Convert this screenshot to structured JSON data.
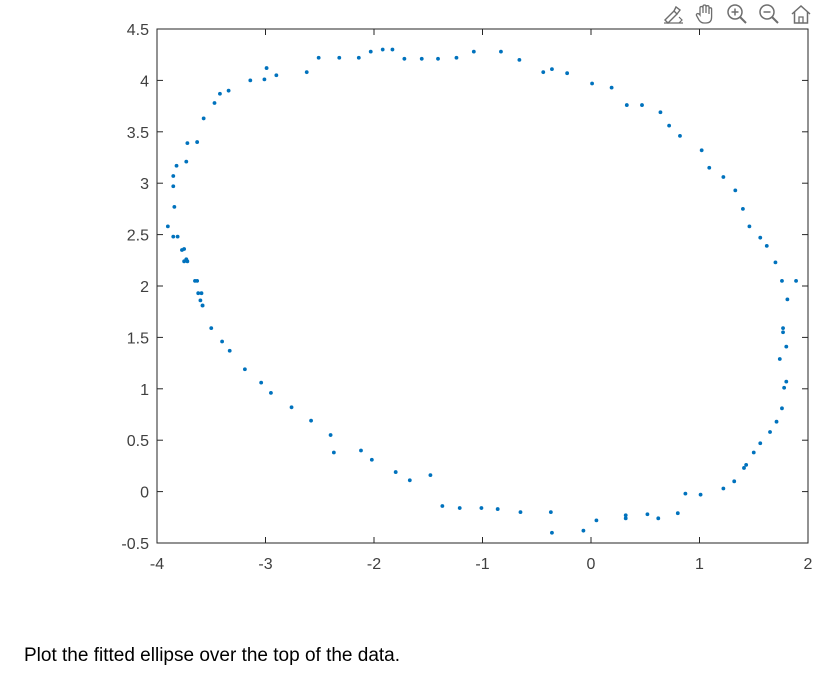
{
  "toolbar": {
    "buttons": [
      {
        "name": "brush-icon"
      },
      {
        "name": "pan-icon"
      },
      {
        "name": "zoom-in-icon"
      },
      {
        "name": "zoom-out-icon"
      },
      {
        "name": "home-icon"
      }
    ]
  },
  "caption": "Plot the fitted ellipse over the top of the data.",
  "colors": {
    "marker": "#0072BD",
    "axis": "#262626",
    "tick_text": "#404040",
    "toolbar_icon": "#6e6e6e"
  },
  "chart_data": {
    "type": "scatter",
    "title": "",
    "xlabel": "",
    "ylabel": "",
    "xlim": [
      -4,
      2
    ],
    "ylim": [
      -0.5,
      4.5
    ],
    "xticks": [
      -4,
      -3,
      -2,
      -1,
      0,
      1,
      2
    ],
    "xtick_labels": [
      "-4",
      "-3",
      "-2",
      "-1",
      "0",
      "1",
      "2"
    ],
    "yticks": [
      -0.5,
      0,
      0.5,
      1,
      1.5,
      2,
      2.5,
      3,
      3.5,
      4,
      4.5
    ],
    "ytick_labels": [
      "-0.5",
      "0",
      "0.5",
      "1",
      "1.5",
      "2",
      "2.5",
      "3",
      "3.5",
      "4",
      "4.5"
    ],
    "grid": false,
    "box": true,
    "series": [
      {
        "color": "#0072BD",
        "x": [
          -3.85,
          -3.77,
          -3.75,
          -3.72,
          -3.65,
          -3.62,
          -3.6,
          -3.58,
          -3.5,
          -3.4,
          -3.33,
          -3.19,
          -3.04,
          -2.95,
          -2.76,
          -2.58,
          -2.4,
          -2.37,
          -2.12,
          -2.02,
          -1.8,
          -1.67,
          -1.48,
          -1.37,
          -1.21,
          -1.01,
          -0.86,
          -0.65,
          -0.37,
          -0.36,
          -0.07,
          0.05,
          0.32,
          0.32,
          0.52,
          0.62,
          0.8,
          0.87,
          1.01,
          1.22,
          1.32,
          1.41,
          1.43,
          1.5,
          1.56,
          1.65,
          1.71,
          1.76,
          1.78,
          1.8,
          1.8,
          1.77,
          1.77,
          1.74,
          1.81,
          1.89,
          1.76,
          1.7,
          1.62,
          1.56,
          1.46,
          1.4,
          1.33,
          1.22,
          1.09,
          1.02,
          0.82,
          0.72,
          0.64,
          0.47,
          0.33,
          0.19,
          0.01,
          -0.22,
          -0.36,
          -0.44,
          -0.66,
          -0.83,
          -1.08,
          -1.24,
          -1.41,
          -1.56,
          -1.72,
          -1.83,
          -1.92,
          -2.03,
          -2.14,
          -2.32,
          -2.51,
          -2.62,
          -2.9,
          -2.99,
          -3.01,
          -3.14,
          -3.34,
          -3.42,
          -3.47,
          -3.57,
          -3.63,
          -3.72,
          -3.73,
          -3.82,
          -3.85,
          -3.85,
          -3.84,
          -3.9,
          -3.81,
          -3.75,
          -3.73,
          -3.63,
          -3.59,
          -3.58
        ],
        "y": [
          2.48,
          2.35,
          2.24,
          2.24,
          2.05,
          1.93,
          1.86,
          1.81,
          1.59,
          1.46,
          1.37,
          1.19,
          1.06,
          0.96,
          0.82,
          0.69,
          0.55,
          0.38,
          0.4,
          0.31,
          0.19,
          0.11,
          0.16,
          -0.14,
          -0.16,
          -0.16,
          -0.17,
          -0.2,
          -0.2,
          -0.4,
          -0.38,
          -0.28,
          -0.26,
          -0.23,
          -0.22,
          -0.26,
          -0.21,
          -0.02,
          -0.03,
          0.03,
          0.1,
          0.23,
          0.26,
          0.38,
          0.47,
          0.58,
          0.68,
          0.81,
          1.01,
          1.07,
          1.41,
          1.55,
          1.59,
          1.29,
          1.87,
          2.05,
          2.05,
          2.23,
          2.39,
          2.47,
          2.58,
          2.75,
          2.93,
          3.06,
          3.15,
          3.32,
          3.46,
          3.56,
          3.69,
          3.76,
          3.76,
          3.93,
          3.97,
          4.07,
          4.11,
          4.08,
          4.2,
          4.28,
          4.28,
          4.22,
          4.21,
          4.21,
          4.21,
          4.3,
          4.3,
          4.28,
          4.22,
          4.22,
          4.22,
          4.08,
          4.05,
          4.12,
          4.01,
          4.0,
          3.9,
          3.87,
          3.78,
          3.63,
          3.4,
          3.39,
          3.21,
          3.17,
          3.07,
          2.97,
          2.77,
          2.58,
          2.48,
          2.36,
          2.26,
          2.05,
          1.93,
          1.81
        ]
      }
    ]
  }
}
